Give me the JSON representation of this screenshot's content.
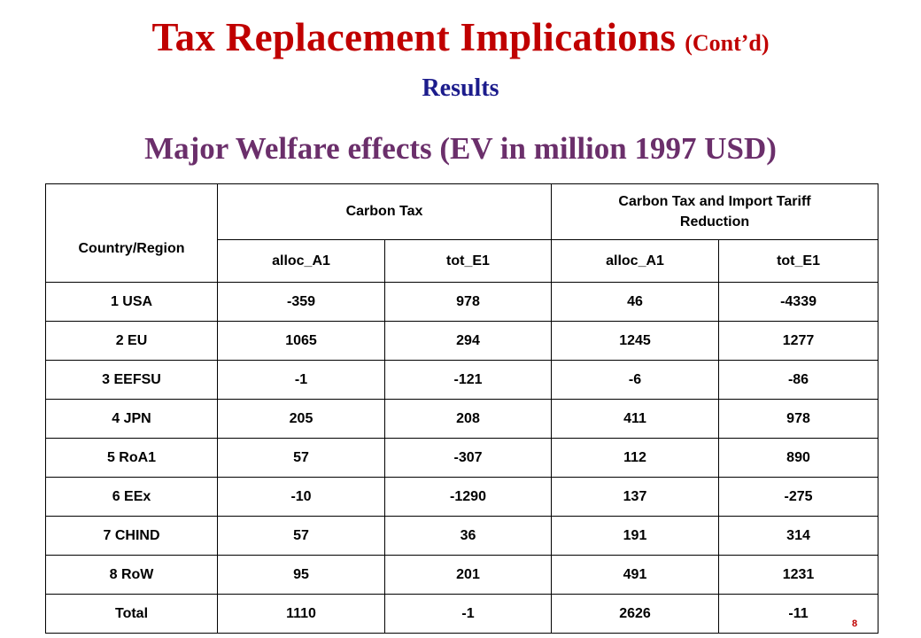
{
  "slide": {
    "title": "Tax Replacement Implications",
    "title_suffix": "(Cont’d)",
    "subtitle": "Results",
    "heading": "Major Welfare effects (EV in million 1997 USD)",
    "page_number": "8"
  },
  "table": {
    "header": {
      "country_region": "Country/Region",
      "group1": "Carbon Tax",
      "group2": "Carbon Tax and Import Tariff Reduction",
      "sub": [
        "alloc_A1",
        "tot_E1",
        "alloc_A1",
        "tot_E1"
      ]
    },
    "rows": [
      {
        "region": "1 USA",
        "values": [
          "-359",
          "978",
          "46",
          "-4339"
        ]
      },
      {
        "region": "2 EU",
        "values": [
          "1065",
          "294",
          "1245",
          "1277"
        ]
      },
      {
        "region": "3 EEFSU",
        "values": [
          "-1",
          "-121",
          "-6",
          "-86"
        ]
      },
      {
        "region": "4 JPN",
        "values": [
          "205",
          "208",
          "411",
          "978"
        ]
      },
      {
        "region": "5 RoA1",
        "values": [
          "57",
          "-307",
          "112",
          "890"
        ]
      },
      {
        "region": "6 EEx",
        "values": [
          "-10",
          "-1290",
          "137",
          "-275"
        ]
      },
      {
        "region": "7 CHIND",
        "values": [
          "57",
          "36",
          "191",
          "314"
        ]
      },
      {
        "region": "8 RoW",
        "values": [
          "95",
          "201",
          "491",
          "1231"
        ]
      },
      {
        "region": "Total",
        "values": [
          "1110",
          "-1",
          "2626",
          "-11"
        ]
      }
    ]
  }
}
